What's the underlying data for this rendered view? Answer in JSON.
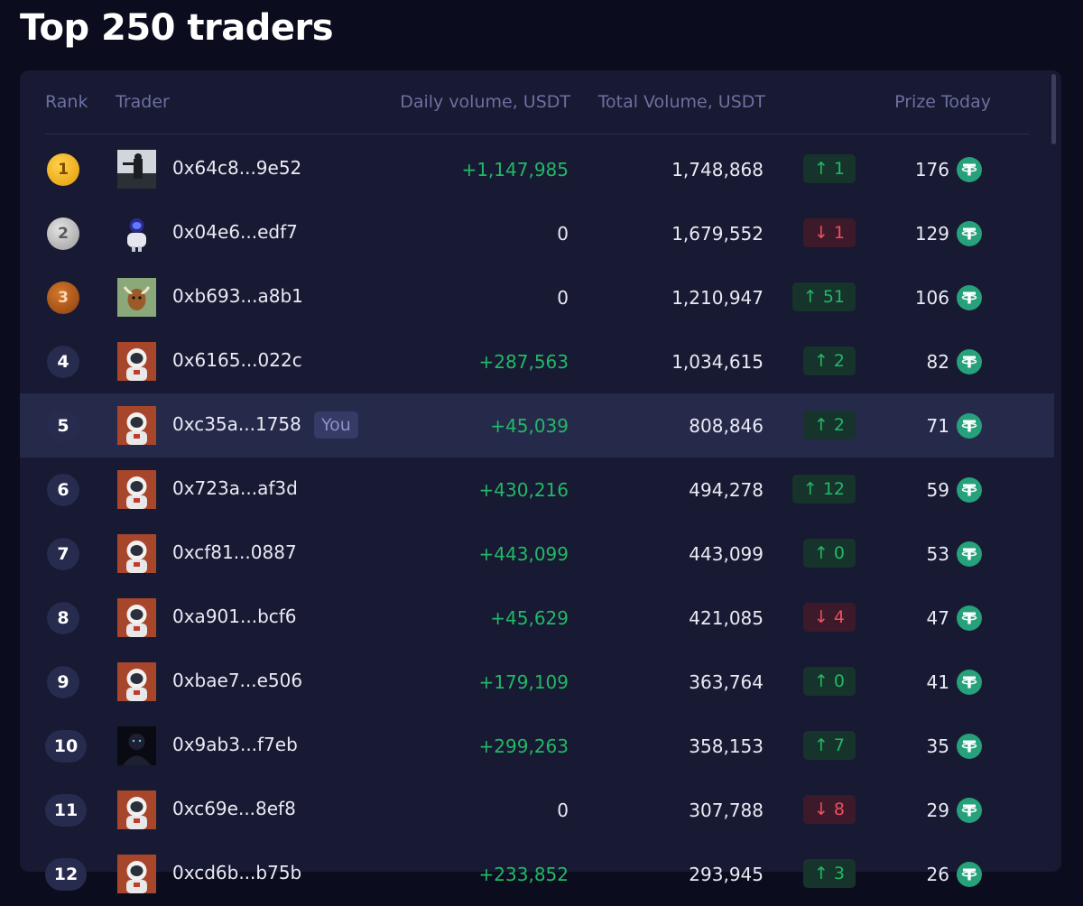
{
  "page": {
    "title": "Top 250 traders"
  },
  "table": {
    "headers": {
      "rank": "Rank",
      "trader": "Trader",
      "daily": "Daily volume, USDT",
      "total": "Total Volume, USDT",
      "prize": "Prize Today"
    },
    "you_label": "You",
    "rows": [
      {
        "rank": "1",
        "medal": "gold",
        "address": "0x64c8...9e52",
        "daily": "+1,147,985",
        "total": "1,748,868",
        "direction": "up",
        "change": "1",
        "prize": "176",
        "avatar": "photo-avatar"
      },
      {
        "rank": "2",
        "medal": "silver",
        "address": "0x04e6...edf7",
        "daily": "0",
        "total": "1,679,552",
        "direction": "down",
        "change": "1",
        "prize": "129",
        "avatar": "robot-avatar"
      },
      {
        "rank": "3",
        "medal": "bronze",
        "address": "0xb693...a8b1",
        "daily": "0",
        "total": "1,210,947",
        "direction": "up",
        "change": "51",
        "prize": "106",
        "avatar": "bull-avatar"
      },
      {
        "rank": "4",
        "medal": "",
        "address": "0x6165...022c",
        "daily": "+287,563",
        "total": "1,034,615",
        "direction": "up",
        "change": "2",
        "prize": "82",
        "avatar": "astronaut-avatar"
      },
      {
        "rank": "5",
        "medal": "",
        "address": "0xc35a...1758",
        "daily": "+45,039",
        "total": "808,846",
        "direction": "up",
        "change": "2",
        "prize": "71",
        "avatar": "astronaut-avatar",
        "you": true
      },
      {
        "rank": "6",
        "medal": "",
        "address": "0x723a...af3d",
        "daily": "+430,216",
        "total": "494,278",
        "direction": "up",
        "change": "12",
        "prize": "59",
        "avatar": "astronaut-avatar"
      },
      {
        "rank": "7",
        "medal": "",
        "address": "0xcf81...0887",
        "daily": "+443,099",
        "total": "443,099",
        "direction": "up",
        "change": "0",
        "prize": "53",
        "avatar": "astronaut-avatar"
      },
      {
        "rank": "8",
        "medal": "",
        "address": "0xa901...bcf6",
        "daily": "+45,629",
        "total": "421,085",
        "direction": "down",
        "change": "4",
        "prize": "47",
        "avatar": "astronaut-avatar"
      },
      {
        "rank": "9",
        "medal": "",
        "address": "0xbae7...e506",
        "daily": "+179,109",
        "total": "363,764",
        "direction": "up",
        "change": "0",
        "prize": "41",
        "avatar": "astronaut-avatar"
      },
      {
        "rank": "10",
        "medal": "",
        "address": "0x9ab3...f7eb",
        "daily": "+299,263",
        "total": "358,153",
        "direction": "up",
        "change": "7",
        "prize": "35",
        "avatar": "dark-figure-avatar"
      },
      {
        "rank": "11",
        "medal": "",
        "address": "0xc69e...8ef8",
        "daily": "0",
        "total": "307,788",
        "direction": "down",
        "change": "8",
        "prize": "29",
        "avatar": "astronaut-avatar"
      },
      {
        "rank": "12",
        "medal": "",
        "address": "0xcd6b...b75b",
        "daily": "+233,852",
        "total": "293,945",
        "direction": "up",
        "change": "3",
        "prize": "26",
        "avatar": "astronaut-avatar"
      }
    ]
  },
  "colors": {
    "background": "#0b0d1e",
    "panel": "#171a32",
    "positive": "#22b866",
    "negative": "#f04d5f",
    "muted": "#6c70a0",
    "usdt": "#26a17b"
  }
}
